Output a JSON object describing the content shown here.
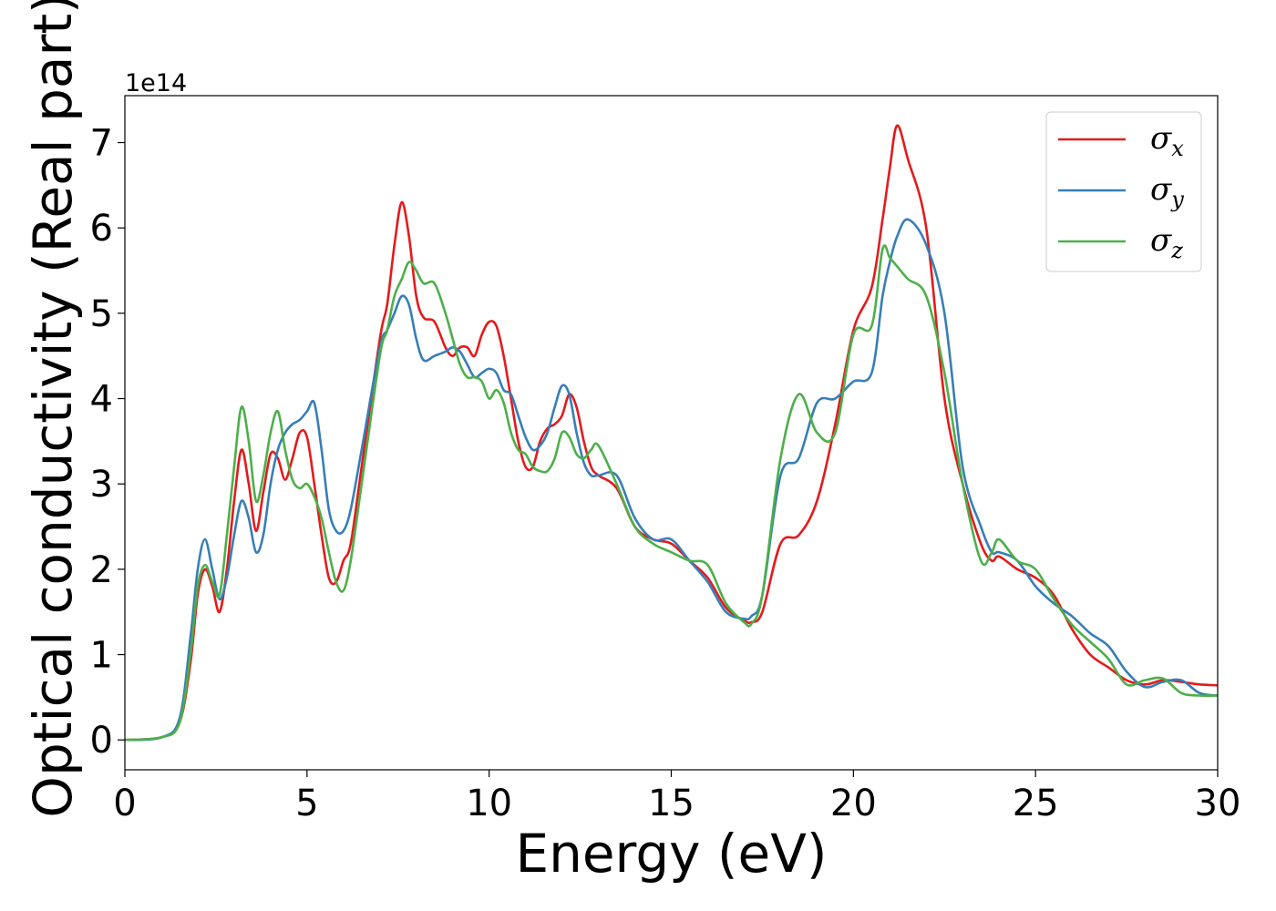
{
  "chart_data": {
    "type": "line",
    "xlabel": "Energy (eV)",
    "ylabel": "Optical conductivity (Real part)",
    "offset_label": "1e14",
    "xlim": [
      0,
      30
    ],
    "ylim": [
      -0.35,
      7.55
    ],
    "xticks": [
      0,
      5,
      10,
      15,
      20,
      25,
      30
    ],
    "yticks": [
      0,
      1,
      2,
      3,
      4,
      5,
      6,
      7
    ],
    "xtick_labels": [
      "0",
      "5",
      "10",
      "15",
      "20",
      "25",
      "30"
    ],
    "ytick_labels": [
      "0",
      "1",
      "2",
      "3",
      "4",
      "5",
      "6",
      "7"
    ],
    "grid": false,
    "legend_position": "top-right",
    "series": [
      {
        "name": "σx",
        "symbol": "σ",
        "subscript": "x",
        "color": "#e41a1c",
        "x": [
          0,
          1,
          1.5,
          1.8,
          2.0,
          2.2,
          2.4,
          2.6,
          2.8,
          3.0,
          3.2,
          3.4,
          3.6,
          3.8,
          4.0,
          4.2,
          4.4,
          4.6,
          4.8,
          5.0,
          5.2,
          5.4,
          5.6,
          5.8,
          6.0,
          6.2,
          6.5,
          7.0,
          7.2,
          7.4,
          7.6,
          7.8,
          8.0,
          8.2,
          8.5,
          8.8,
          9.0,
          9.2,
          9.4,
          9.6,
          9.8,
          10.0,
          10.2,
          10.4,
          10.6,
          10.8,
          11.0,
          11.2,
          11.4,
          11.6,
          11.8,
          12.0,
          12.2,
          12.4,
          12.6,
          12.8,
          13.0,
          13.5,
          14.0,
          14.5,
          15.0,
          15.5,
          16.0,
          16.5,
          17.0,
          17.2,
          17.5,
          18.0,
          18.5,
          19.0,
          19.5,
          20.0,
          20.5,
          20.8,
          21.0,
          21.2,
          21.5,
          22.0,
          22.5,
          23.0,
          23.5,
          23.8,
          24.0,
          24.5,
          25.0,
          25.5,
          26.0,
          26.5,
          27.0,
          27.5,
          28.0,
          28.5,
          29.0,
          29.5,
          30.0
        ],
        "y": [
          0,
          0.03,
          0.2,
          0.9,
          1.7,
          2.0,
          1.8,
          1.5,
          2.0,
          2.8,
          3.4,
          3.0,
          2.45,
          2.9,
          3.35,
          3.3,
          3.05,
          3.3,
          3.6,
          3.55,
          3.0,
          2.4,
          1.9,
          1.85,
          2.1,
          2.3,
          3.2,
          4.7,
          5.1,
          5.8,
          6.3,
          5.9,
          5.2,
          4.95,
          4.9,
          4.6,
          4.5,
          4.6,
          4.6,
          4.5,
          4.75,
          4.9,
          4.85,
          4.5,
          4.0,
          3.5,
          3.2,
          3.2,
          3.5,
          3.65,
          3.7,
          3.8,
          4.05,
          3.9,
          3.5,
          3.2,
          3.1,
          2.95,
          2.5,
          2.35,
          2.3,
          2.1,
          1.9,
          1.55,
          1.4,
          1.38,
          1.5,
          2.3,
          2.4,
          2.8,
          3.7,
          4.8,
          5.3,
          6.1,
          6.7,
          7.2,
          6.8,
          6.0,
          4.0,
          3.0,
          2.3,
          2.1,
          2.15,
          2.0,
          1.9,
          1.7,
          1.3,
          1.0,
          0.85,
          0.7,
          0.65,
          0.7,
          0.68,
          0.65,
          0.64
        ]
      },
      {
        "name": "σy",
        "symbol": "σ",
        "subscript": "y",
        "color": "#377eb8",
        "x": [
          0,
          1,
          1.5,
          1.8,
          2.0,
          2.2,
          2.4,
          2.6,
          2.8,
          3.0,
          3.2,
          3.4,
          3.6,
          3.8,
          4.0,
          4.2,
          4.4,
          4.6,
          4.8,
          5.0,
          5.2,
          5.4,
          5.6,
          5.8,
          6.0,
          6.2,
          6.5,
          7.0,
          7.2,
          7.4,
          7.6,
          7.8,
          8.0,
          8.2,
          8.5,
          8.8,
          9.0,
          9.2,
          9.4,
          9.6,
          9.8,
          10.0,
          10.2,
          10.4,
          10.6,
          10.8,
          11.0,
          11.2,
          11.4,
          11.6,
          11.8,
          12.0,
          12.2,
          12.4,
          12.6,
          12.8,
          13.0,
          13.5,
          14.0,
          14.5,
          15.0,
          15.5,
          16.0,
          16.5,
          17.0,
          17.2,
          17.5,
          18.0,
          18.5,
          19.0,
          19.5,
          20.0,
          20.5,
          20.8,
          21.0,
          21.2,
          21.5,
          22.0,
          22.5,
          23.0,
          23.5,
          23.8,
          24.0,
          24.5,
          25.0,
          25.5,
          26.0,
          26.5,
          27.0,
          27.5,
          28.0,
          28.5,
          29.0,
          29.5,
          30.0
        ],
        "y": [
          0,
          0.03,
          0.25,
          1.2,
          2.0,
          2.35,
          2.0,
          1.65,
          1.9,
          2.4,
          2.8,
          2.6,
          2.2,
          2.4,
          3.0,
          3.4,
          3.6,
          3.7,
          3.75,
          3.85,
          3.95,
          3.4,
          2.7,
          2.45,
          2.45,
          2.7,
          3.4,
          4.6,
          4.8,
          5.0,
          5.2,
          5.1,
          4.7,
          4.45,
          4.5,
          4.55,
          4.6,
          4.55,
          4.4,
          4.25,
          4.3,
          4.35,
          4.3,
          4.1,
          4.05,
          3.8,
          3.55,
          3.4,
          3.45,
          3.6,
          3.9,
          4.15,
          4.05,
          3.6,
          3.25,
          3.1,
          3.1,
          3.1,
          2.6,
          2.35,
          2.35,
          2.1,
          1.85,
          1.5,
          1.42,
          1.45,
          1.7,
          3.1,
          3.3,
          3.95,
          4.0,
          4.2,
          4.3,
          5.2,
          5.6,
          5.9,
          6.1,
          5.8,
          5.0,
          3.2,
          2.5,
          2.2,
          2.2,
          2.1,
          1.8,
          1.6,
          1.45,
          1.25,
          1.1,
          0.8,
          0.62,
          0.68,
          0.7,
          0.55,
          0.52
        ]
      },
      {
        "name": "σz",
        "symbol": "σ",
        "subscript": "z",
        "color": "#4daf4a",
        "x": [
          0,
          1,
          1.5,
          1.8,
          2.0,
          2.2,
          2.4,
          2.6,
          2.8,
          3.0,
          3.2,
          3.4,
          3.6,
          3.8,
          4.0,
          4.2,
          4.4,
          4.6,
          4.8,
          5.0,
          5.2,
          5.4,
          5.6,
          5.8,
          6.0,
          6.2,
          6.5,
          7.0,
          7.2,
          7.4,
          7.6,
          7.8,
          8.0,
          8.2,
          8.5,
          8.8,
          9.0,
          9.2,
          9.4,
          9.6,
          9.8,
          10.0,
          10.2,
          10.4,
          10.6,
          10.8,
          11.0,
          11.2,
          11.4,
          11.6,
          11.8,
          12.0,
          12.2,
          12.4,
          12.6,
          12.8,
          13.0,
          13.5,
          14.0,
          14.5,
          15.0,
          15.5,
          16.0,
          16.5,
          17.0,
          17.2,
          17.5,
          18.0,
          18.5,
          19.0,
          19.5,
          20.0,
          20.5,
          20.8,
          21.0,
          21.2,
          21.5,
          22.0,
          22.5,
          23.0,
          23.5,
          23.8,
          24.0,
          24.5,
          25.0,
          25.5,
          26.0,
          26.5,
          27.0,
          27.5,
          28.0,
          28.5,
          29.0,
          29.5,
          30.0
        ],
        "y": [
          0,
          0.03,
          0.2,
          1.0,
          1.8,
          2.05,
          1.85,
          1.7,
          2.4,
          3.2,
          3.9,
          3.5,
          2.8,
          3.1,
          3.6,
          3.85,
          3.4,
          3.05,
          2.95,
          3.0,
          2.85,
          2.6,
          2.2,
          1.85,
          1.75,
          2.1,
          3.0,
          4.5,
          4.8,
          5.2,
          5.4,
          5.6,
          5.5,
          5.35,
          5.35,
          5.0,
          4.7,
          4.4,
          4.25,
          4.25,
          4.2,
          4.0,
          4.1,
          3.95,
          3.6,
          3.4,
          3.35,
          3.2,
          3.15,
          3.15,
          3.3,
          3.6,
          3.55,
          3.35,
          3.3,
          3.4,
          3.45,
          3.0,
          2.5,
          2.3,
          2.2,
          2.1,
          2.05,
          1.6,
          1.38,
          1.36,
          1.7,
          3.3,
          4.05,
          3.6,
          3.6,
          4.75,
          4.85,
          5.75,
          5.65,
          5.55,
          5.4,
          5.2,
          4.3,
          3.0,
          2.1,
          2.2,
          2.35,
          2.1,
          2.0,
          1.65,
          1.35,
          1.15,
          0.95,
          0.65,
          0.7,
          0.72,
          0.55,
          0.52,
          0.52
        ]
      }
    ]
  }
}
